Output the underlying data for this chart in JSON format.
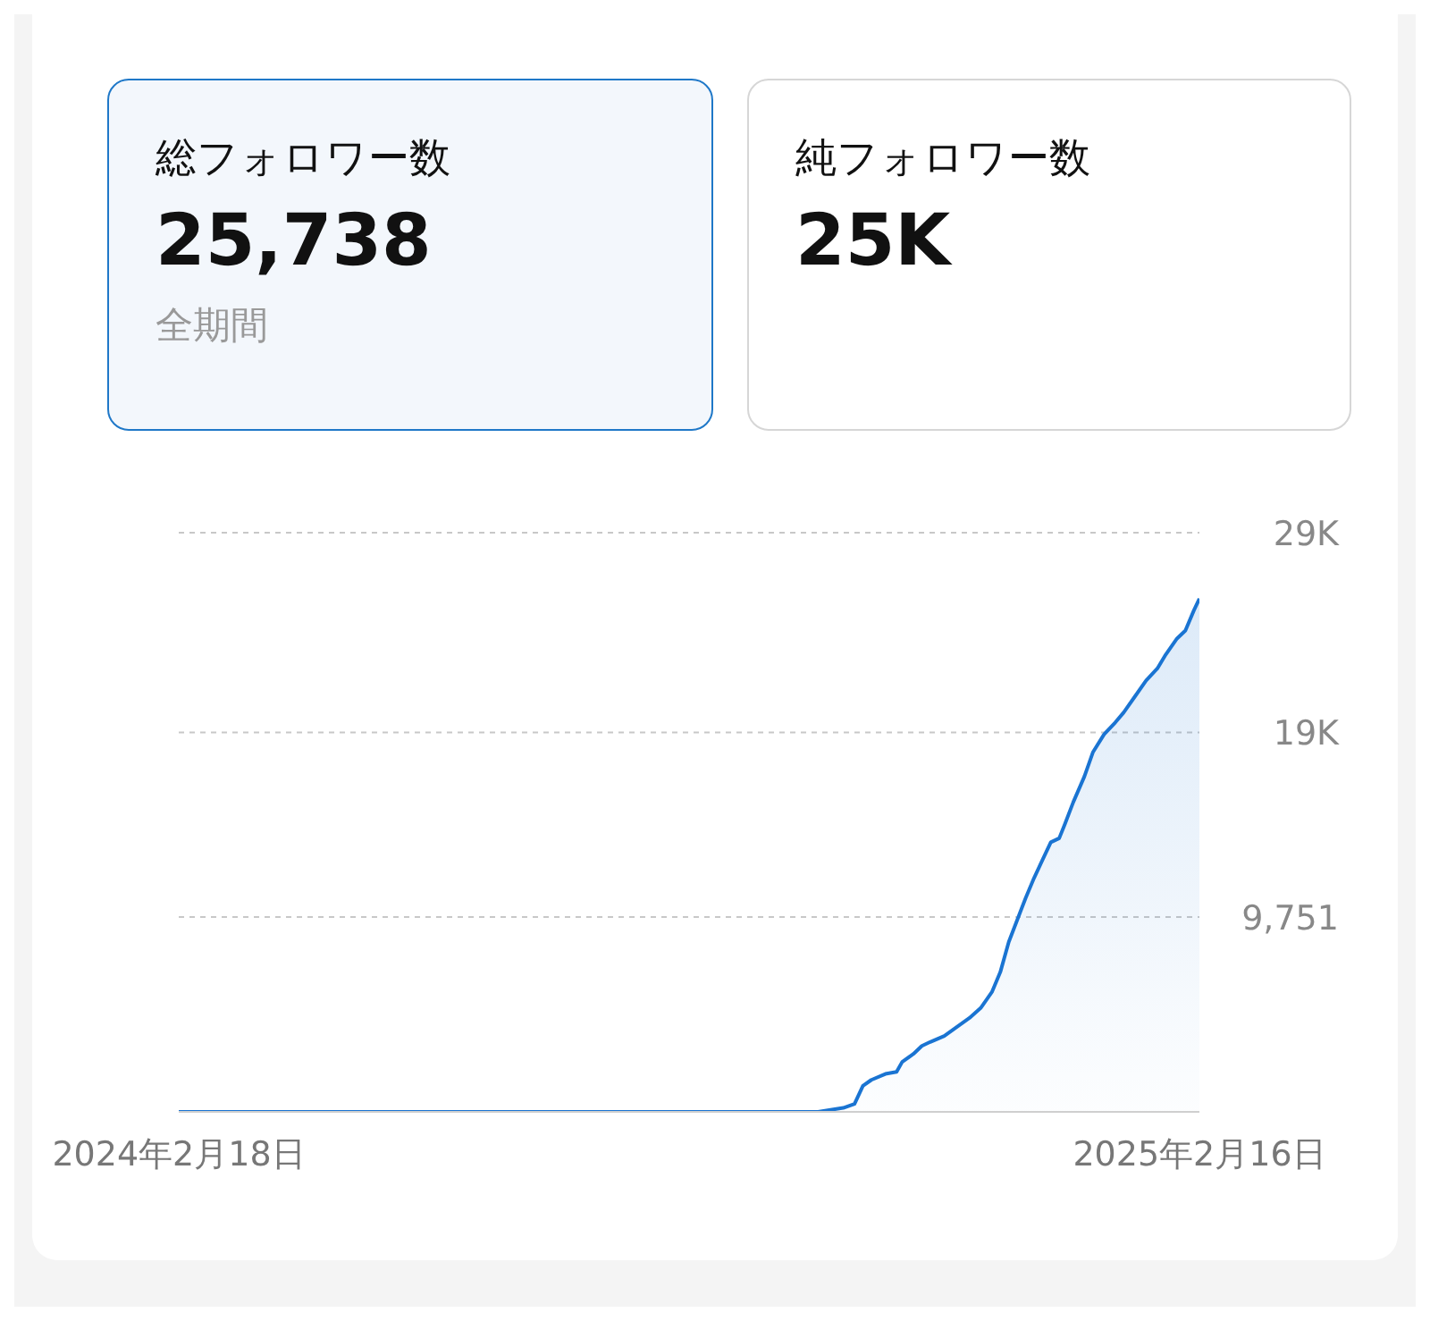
{
  "chart_data": [
    {
      "type": "other",
      "title": "総フォロワー数",
      "annotations": [
        "25,738",
        "全期間"
      ]
    },
    {
      "type": "other",
      "title": "純フォロワー数",
      "annotations": [
        "25K"
      ]
    },
    {
      "type": "area",
      "color": "#1a74d2",
      "grid": "y",
      "x": [
        "2024-02-18",
        "2024-10-03",
        "2024-10-12",
        "2024-10-16",
        "2024-10-19",
        "2024-10-22",
        "2024-10-27",
        "2024-10-31",
        "2024-11-02",
        "2024-11-06",
        "2024-11-09",
        "2024-11-12",
        "2024-11-17",
        "2024-11-21",
        "2024-11-26",
        "2024-11-30",
        "2024-12-04",
        "2024-12-07",
        "2024-12-10",
        "2024-12-13",
        "2024-12-16",
        "2024-12-19",
        "2024-12-22",
        "2024-12-25",
        "2024-12-28",
        "2024-12-30",
        "2025-01-02",
        "2025-01-06",
        "2025-01-09",
        "2025-01-13",
        "2025-01-17",
        "2025-01-20",
        "2025-01-24",
        "2025-01-28",
        "2025-02-01",
        "2025-02-04",
        "2025-02-08",
        "2025-02-11",
        "2025-02-14",
        "2025-02-16"
      ],
      "values": [
        0,
        0,
        200,
        400,
        1300,
        1600,
        1900,
        2000,
        2500,
        2900,
        3300,
        3500,
        3800,
        4200,
        4700,
        5200,
        6000,
        7000,
        8500,
        9600,
        10700,
        11700,
        12600,
        13500,
        13700,
        14400,
        15500,
        16800,
        18000,
        18900,
        19500,
        20000,
        20800,
        21600,
        22200,
        22900,
        23700,
        24100,
        25100,
        25700
      ],
      "xlim": [
        "2024-02-18",
        "2025-02-16"
      ],
      "xticks": [
        {
          "value": "2024-02-18",
          "label": "2024年2月18日"
        },
        {
          "value": "2025-02-16",
          "label": "2025年2月16日"
        }
      ],
      "ylim": [
        0,
        29000
      ],
      "yticks": [
        {
          "value": 9751,
          "label": "9,751"
        },
        {
          "value": 19000,
          "label": "19K"
        },
        {
          "value": 29000,
          "label": "29K"
        }
      ]
    }
  ]
}
